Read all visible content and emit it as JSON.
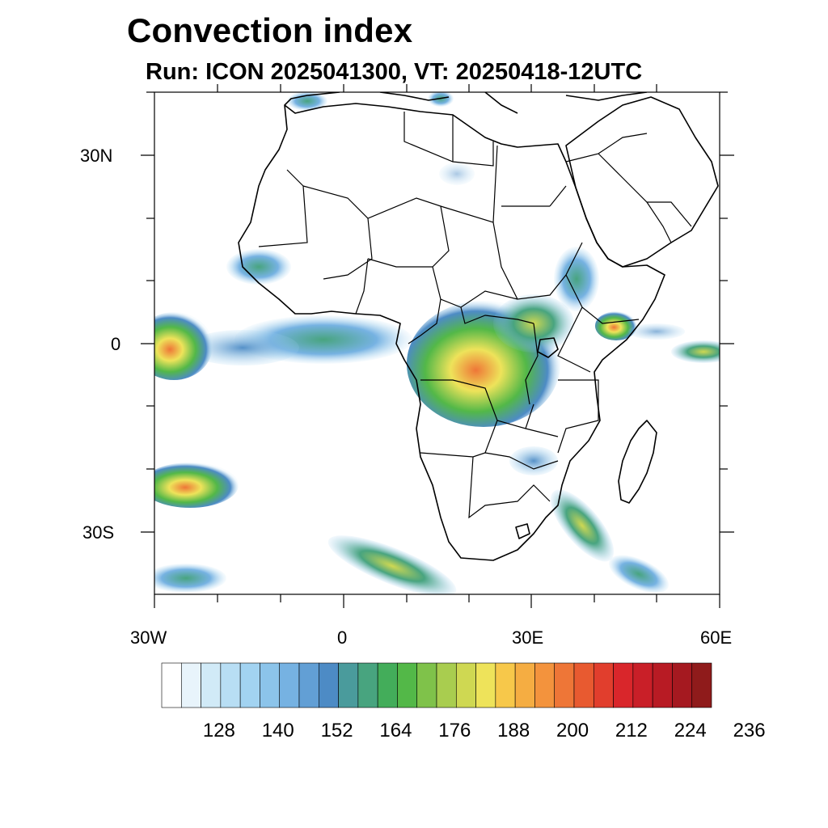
{
  "title": "Convection index",
  "subtitle": "Run: ICON 2025041300,  VT: 20250418-12UTC",
  "map": {
    "region": "Africa",
    "lat_labels": [
      "30N",
      "0",
      "30S"
    ],
    "lon_labels": [
      "30W",
      "0",
      "30E",
      "60E"
    ]
  },
  "colorbar": {
    "labels": [
      "128",
      "140",
      "152",
      "164",
      "176",
      "188",
      "200",
      "212",
      "224",
      "236"
    ],
    "colors": [
      "#ffffff",
      "#e8f4fb",
      "#d1eaf7",
      "#b8def4",
      "#a2d3f1",
      "#8cc4ea",
      "#76b2e2",
      "#629fd5",
      "#4d8bc5",
      "#4a9b9c",
      "#48a47f",
      "#43ad5a",
      "#53b848",
      "#7fc24a",
      "#a9cd4f",
      "#cfd852",
      "#eee35a",
      "#f7c84a",
      "#f5ad42",
      "#f3933d",
      "#ee7637",
      "#e85a30",
      "#e13e2d",
      "#d9262b",
      "#c91f28",
      "#b81b24",
      "#a51920",
      "#8f1b1b"
    ]
  }
}
